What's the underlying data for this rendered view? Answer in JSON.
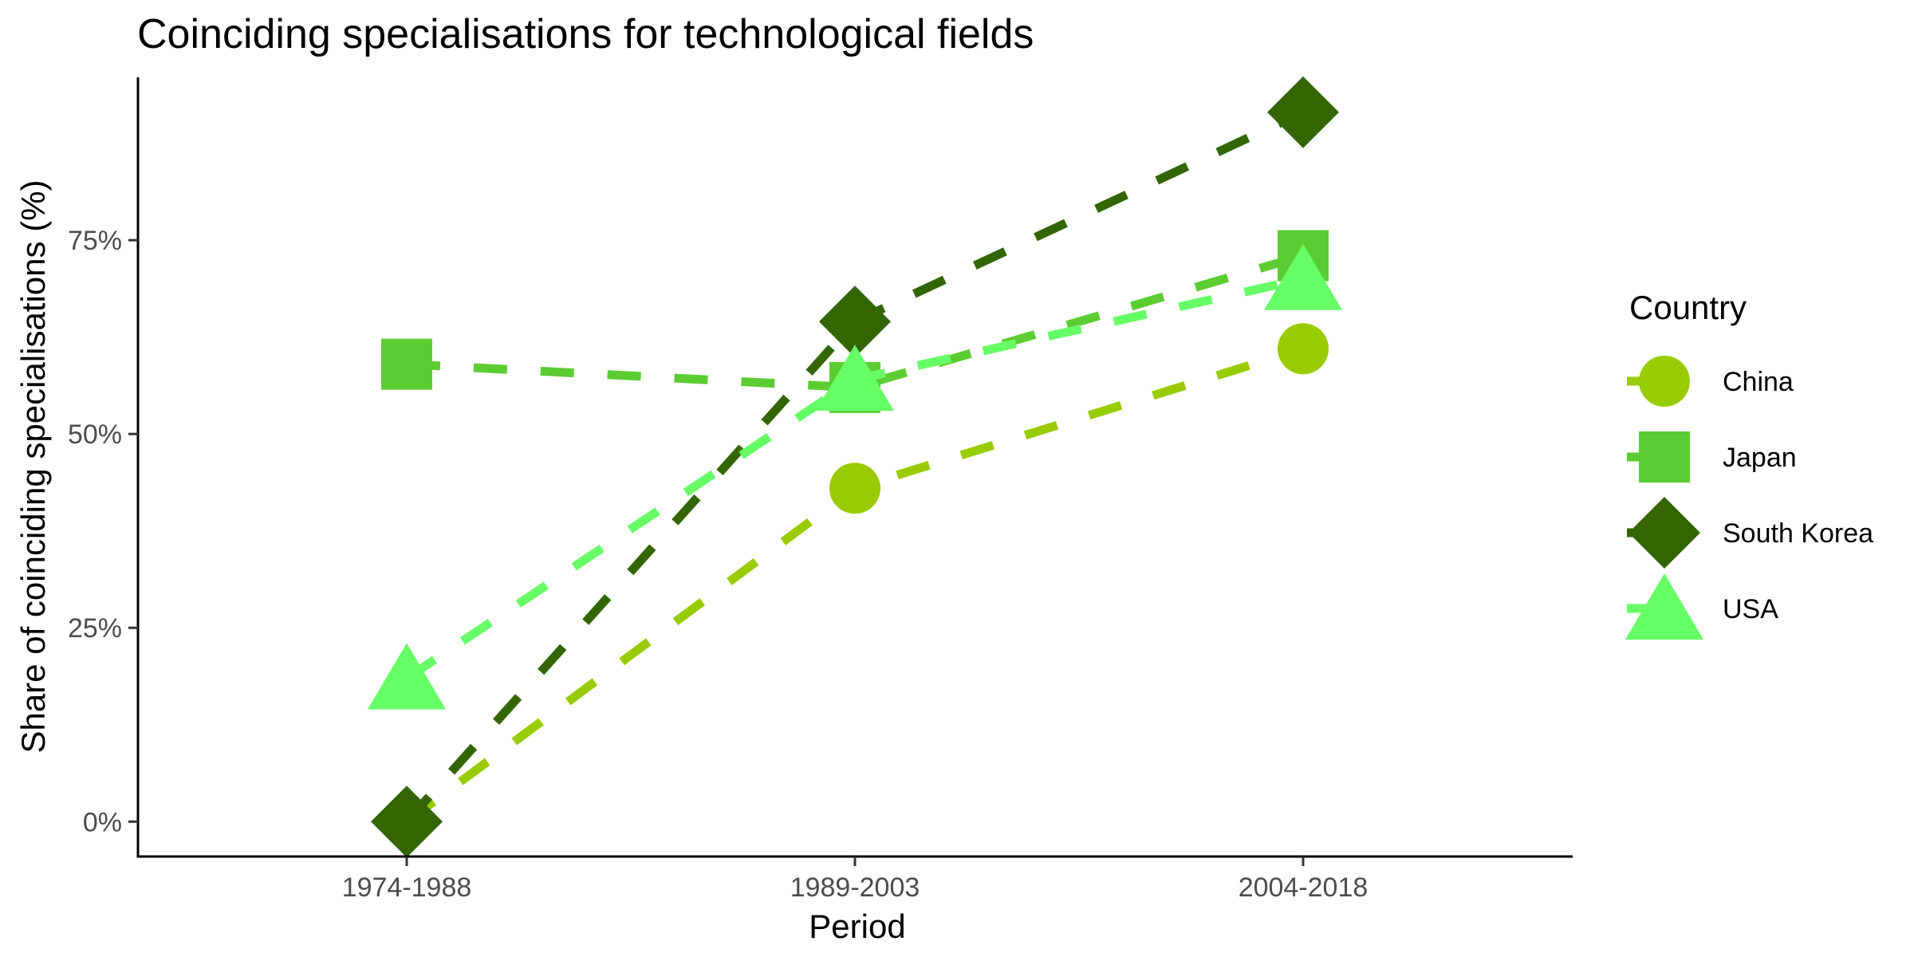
{
  "chart_data": {
    "type": "line",
    "title": "Coinciding specialisations for technological fields",
    "xlabel": "Period",
    "ylabel": "Share of coinciding specialisations (%)",
    "categories": [
      "1974-1988",
      "1989-2003",
      "2004-2018"
    ],
    "ylim": [
      -4.5,
      96
    ],
    "y_ticks": [
      0,
      25,
      50,
      75
    ],
    "y_tick_labels": [
      "0%",
      "25%",
      "50%",
      "75%"
    ],
    "grid": false,
    "legend_title": "Country",
    "legend_position": "right",
    "series": [
      {
        "name": "China",
        "values": [
          0,
          43,
          61
        ],
        "color": "#99CC00",
        "marker": "circle"
      },
      {
        "name": "Japan",
        "values": [
          59,
          56,
          73
        ],
        "color": "#5CCC33",
        "marker": "square"
      },
      {
        "name": "South Korea",
        "values": [
          0,
          64.5,
          91.5
        ],
        "color": "#336600",
        "marker": "diamond"
      },
      {
        "name": "USA",
        "values": [
          18.5,
          57,
          70
        ],
        "color": "#66FF66",
        "marker": "triangle"
      }
    ]
  }
}
